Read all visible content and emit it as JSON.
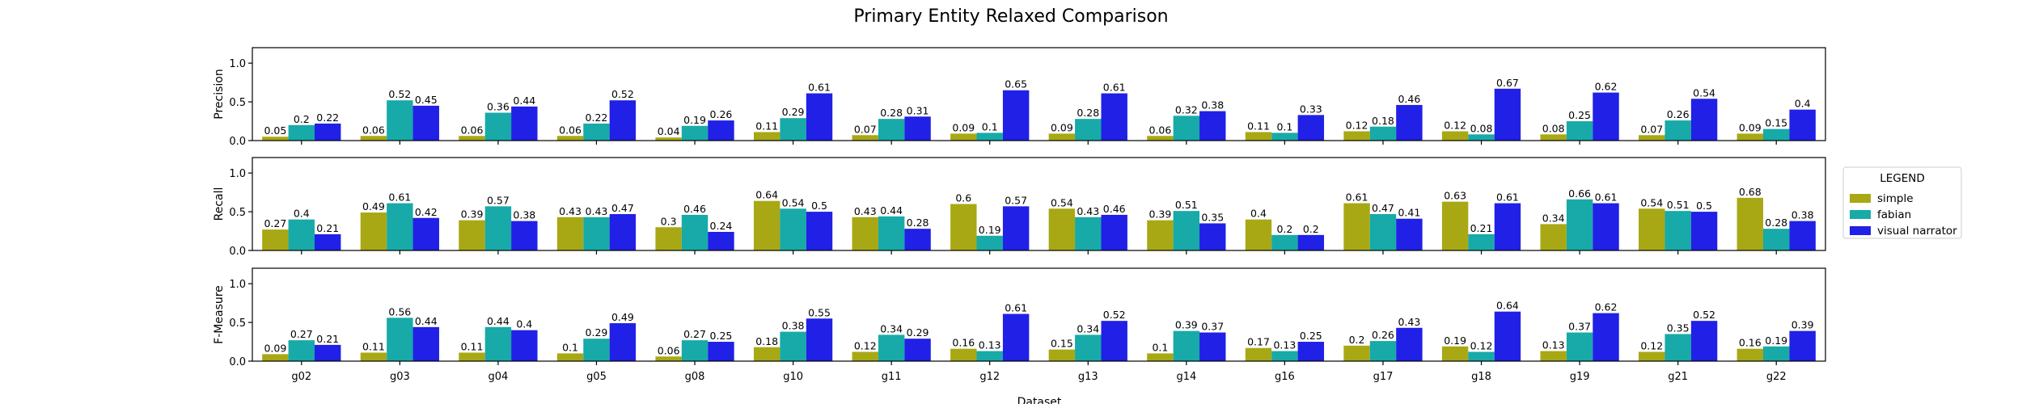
{
  "chart_data": {
    "type": "bar",
    "title": "Primary Entity Relaxed Comparison",
    "xlabel": "Dataset",
    "categories": [
      "g02",
      "g03",
      "g04",
      "g05",
      "g08",
      "g10",
      "g11",
      "g12",
      "g13",
      "g14",
      "g16",
      "g17",
      "g18",
      "g19",
      "g21",
      "g22"
    ],
    "ylim": [
      0,
      1.2
    ],
    "yticks": [
      0.0,
      0.5,
      1.0
    ],
    "legend": {
      "title": "LEGEND",
      "placement": "right",
      "entries": [
        "simple",
        "fabian",
        "visual narrator"
      ]
    },
    "colors": {
      "simple": "#a8a815",
      "fabian": "#17aaa8",
      "visual narrator": "#2020e6"
    },
    "panels": [
      {
        "ylabel": "Precision",
        "series": [
          {
            "name": "simple",
            "values": [
              0.05,
              0.06,
              0.06,
              0.06,
              0.04,
              0.11,
              0.07,
              0.09,
              0.09,
              0.06,
              0.11,
              0.12,
              0.12,
              0.08,
              0.07,
              0.09
            ]
          },
          {
            "name": "fabian",
            "values": [
              0.2,
              0.52,
              0.36,
              0.22,
              0.19,
              0.29,
              0.28,
              0.1,
              0.28,
              0.32,
              0.1,
              0.18,
              0.08,
              0.25,
              0.26,
              0.15
            ]
          },
          {
            "name": "visual narrator",
            "values": [
              0.22,
              0.45,
              0.44,
              0.52,
              0.26,
              0.61,
              0.31,
              0.65,
              0.61,
              0.38,
              0.33,
              0.46,
              0.67,
              0.62,
              0.54,
              0.4
            ]
          }
        ]
      },
      {
        "ylabel": "Recall",
        "series": [
          {
            "name": "simple",
            "values": [
              0.27,
              0.49,
              0.39,
              0.43,
              0.3,
              0.64,
              0.43,
              0.6,
              0.54,
              0.39,
              0.4,
              0.61,
              0.63,
              0.34,
              0.54,
              0.68
            ]
          },
          {
            "name": "fabian",
            "values": [
              0.4,
              0.61,
              0.57,
              0.43,
              0.46,
              0.54,
              0.44,
              0.19,
              0.43,
              0.51,
              0.2,
              0.47,
              0.21,
              0.66,
              0.51,
              0.28
            ]
          },
          {
            "name": "visual narrator",
            "values": [
              0.21,
              0.42,
              0.38,
              0.47,
              0.24,
              0.5,
              0.28,
              0.57,
              0.46,
              0.35,
              0.2,
              0.41,
              0.61,
              0.61,
              0.5,
              0.38
            ]
          }
        ]
      },
      {
        "ylabel": "F-Measure",
        "series": [
          {
            "name": "simple",
            "values": [
              0.09,
              0.11,
              0.11,
              0.1,
              0.06,
              0.18,
              0.12,
              0.16,
              0.15,
              0.1,
              0.17,
              0.2,
              0.19,
              0.13,
              0.12,
              0.16
            ]
          },
          {
            "name": "fabian",
            "values": [
              0.27,
              0.56,
              0.44,
              0.29,
              0.27,
              0.38,
              0.34,
              0.13,
              0.34,
              0.39,
              0.13,
              0.26,
              0.12,
              0.37,
              0.35,
              0.19
            ]
          },
          {
            "name": "visual narrator",
            "values": [
              0.21,
              0.44,
              0.4,
              0.49,
              0.25,
              0.55,
              0.29,
              0.61,
              0.52,
              0.37,
              0.25,
              0.43,
              0.64,
              0.62,
              0.52,
              0.39
            ]
          }
        ]
      }
    ]
  }
}
